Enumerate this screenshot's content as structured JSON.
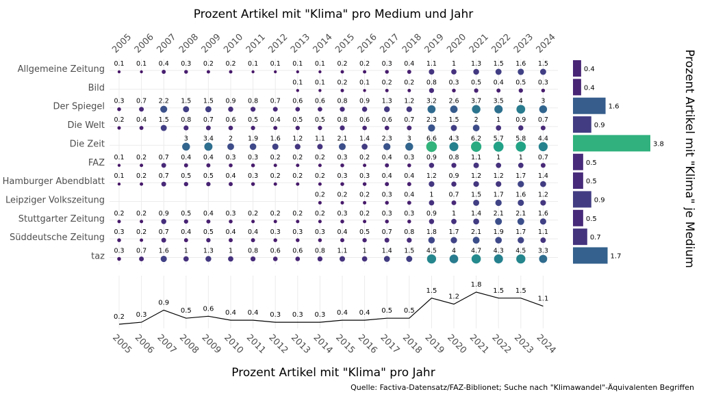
{
  "chart_data": [
    {
      "type": "scatter",
      "title": "Prozent Artikel mit \"Klima\" pro Medium und Jahr",
      "years": [
        "2005",
        "2006",
        "2007",
        "2008",
        "2009",
        "2010",
        "2011",
        "2012",
        "2013",
        "2014",
        "2015",
        "2016",
        "2017",
        "2018",
        "2019",
        "2020",
        "2021",
        "2022",
        "2023",
        "2024"
      ],
      "media": [
        {
          "name": "Allgemeine Zeitung",
          "values": [
            0.1,
            0.1,
            0.4,
            0.3,
            0.2,
            0.2,
            0.1,
            0.1,
            0.1,
            0.1,
            0.2,
            0.2,
            0.3,
            0.4,
            1.1,
            1,
            1.3,
            1.5,
            1.6,
            1.5
          ]
        },
        {
          "name": "Bild",
          "values": [
            null,
            null,
            null,
            null,
            null,
            null,
            null,
            null,
            0.1,
            0.1,
            0.2,
            0.1,
            0.2,
            0.2,
            0.8,
            0.3,
            0.5,
            0.4,
            0.5,
            0.3
          ]
        },
        {
          "name": "Der Spiegel",
          "values": [
            0.3,
            0.7,
            2.2,
            1.5,
            1.5,
            0.9,
            0.8,
            0.7,
            0.6,
            0.6,
            0.8,
            0.9,
            1.3,
            1.2,
            3.2,
            2.6,
            3.7,
            3.5,
            4,
            3
          ]
        },
        {
          "name": "Die Welt",
          "values": [
            0.2,
            0.4,
            1.5,
            0.8,
            0.7,
            0.6,
            0.5,
            0.4,
            0.5,
            0.5,
            0.8,
            0.6,
            0.6,
            0.7,
            2.3,
            1.5,
            2,
            1,
            0.9,
            0.7
          ]
        },
        {
          "name": "Die Zeit",
          "values": [
            null,
            null,
            null,
            3,
            3.4,
            2,
            1.9,
            1.6,
            1.2,
            1.1,
            2.1,
            1.4,
            2.3,
            3,
            6.6,
            4.3,
            6.2,
            5.7,
            5.8,
            4.4
          ]
        },
        {
          "name": "FAZ",
          "values": [
            0.1,
            0.2,
            0.7,
            0.4,
            0.4,
            0.3,
            0.3,
            0.2,
            0.2,
            0.2,
            0.3,
            0.2,
            0.4,
            0.3,
            0.9,
            0.8,
            1.1,
            1,
            1,
            0.7
          ]
        },
        {
          "name": "Hamburger Abendblatt",
          "values": [
            0.1,
            0.2,
            0.7,
            0.5,
            0.5,
            0.4,
            0.3,
            0.2,
            0.2,
            0.2,
            0.3,
            0.3,
            0.4,
            0.4,
            1.2,
            0.9,
            1.2,
            1.2,
            1.7,
            1.4
          ]
        },
        {
          "name": "Leipziger Volkszeitung",
          "values": [
            null,
            null,
            null,
            null,
            null,
            null,
            null,
            null,
            null,
            0.2,
            0.2,
            0.2,
            0.3,
            0.4,
            1,
            0.7,
            1.5,
            1.7,
            1.6,
            1.2
          ]
        },
        {
          "name": "Stuttgarter Zeitung",
          "values": [
            0.2,
            0.2,
            0.9,
            0.5,
            0.4,
            0.3,
            0.2,
            0.2,
            0.2,
            0.2,
            0.3,
            0.2,
            0.3,
            0.3,
            0.9,
            1,
            1.4,
            2.1,
            2.1,
            1.6
          ]
        },
        {
          "name": "Süddeutsche Zeitung",
          "values": [
            0.3,
            0.2,
            0.7,
            0.4,
            0.5,
            0.4,
            0.4,
            0.3,
            0.3,
            0.3,
            0.4,
            0.5,
            0.7,
            0.8,
            1.8,
            1.7,
            2.1,
            1.9,
            1.7,
            1.1
          ]
        },
        {
          "name": "taz",
          "values": [
            0.3,
            0.7,
            1.6,
            1,
            1.3,
            1,
            0.8,
            0.6,
            0.6,
            0.8,
            1.1,
            1,
            1.4,
            1.5,
            4.5,
            4,
            4.7,
            4.3,
            4.5,
            3.3
          ]
        }
      ]
    },
    {
      "type": "bar",
      "orientation": "horizontal",
      "ylabel": "Prozent Artikel mit \"Klima\" je Medium",
      "categories": [
        "Allgemeine Zeitung",
        "Bild",
        "Der Spiegel",
        "Die Welt",
        "Die Zeit",
        "FAZ",
        "Hamburger Abendblatt",
        "Leipziger Volkszeitung",
        "Stuttgarter Zeitung",
        "Süddeutsche Zeitung",
        "taz"
      ],
      "values": [
        0.4,
        0.4,
        1.6,
        0.9,
        3.8,
        0.5,
        0.5,
        0.9,
        0.5,
        0.7,
        1.7
      ]
    },
    {
      "type": "line",
      "xlabel": "Prozent Artikel mit \"Klima\" pro Jahr",
      "x": [
        "2005",
        "2006",
        "2007",
        "2008",
        "2009",
        "2010",
        "2011",
        "2012",
        "2013",
        "2014",
        "2015",
        "2016",
        "2017",
        "2018",
        "2019",
        "2020",
        "2021",
        "2022",
        "2023",
        "2024"
      ],
      "values": [
        0.2,
        0.3,
        0.9,
        0.5,
        0.6,
        0.4,
        0.4,
        0.3,
        0.3,
        0.3,
        0.4,
        0.4,
        0.5,
        0.5,
        1.5,
        1.2,
        1.8,
        1.5,
        1.5,
        1.1
      ]
    }
  ],
  "source": "Quelle: Factiva-Datensatz/FAZ-Biblionet; Suche nach \"Klimawandel\"-Äquivalenten Begriffen",
  "colors": {
    "viridis": [
      "#440154",
      "#482878",
      "#3e4989",
      "#31688e",
      "#26828e",
      "#1f9e89",
      "#35b779",
      "#6ece58",
      "#b5de2b",
      "#fde725"
    ],
    "line": "#000000",
    "grid": "#ebebeb",
    "text": "#4d4d4d"
  }
}
